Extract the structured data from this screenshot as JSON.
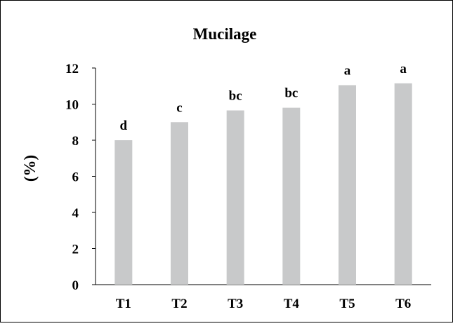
{
  "chart_data": {
    "type": "bar",
    "title": "Mucilage",
    "xlabel": "",
    "ylabel": "(%)",
    "categories": [
      "T1",
      "T2",
      "T3",
      "T4",
      "T5",
      "T6"
    ],
    "values": [
      8.0,
      9.0,
      9.65,
      9.8,
      11.05,
      11.15
    ],
    "data_labels": [
      "d",
      "c",
      "bc",
      "bc",
      "a",
      "a"
    ],
    "ylim": [
      0,
      12
    ],
    "yticks": [
      "0",
      "2",
      "4",
      "6",
      "8",
      "10",
      "12"
    ],
    "ytick_values": [
      0,
      2,
      4,
      6,
      8,
      10,
      12
    ],
    "grid": false,
    "legend": "none",
    "colors": {
      "bar": "#c8c9ca",
      "axis": "#000000",
      "frame": "#000000"
    }
  }
}
